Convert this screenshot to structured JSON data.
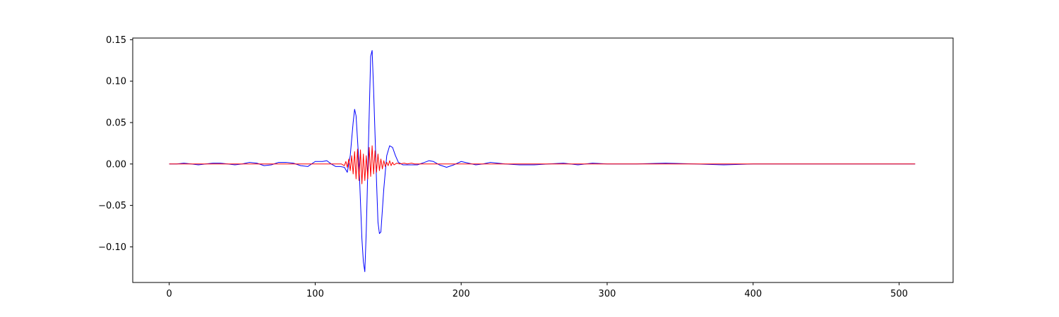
{
  "chart_data": {
    "type": "line",
    "title": "",
    "xlabel": "",
    "ylabel": "",
    "xlim": [
      -25,
      537
    ],
    "ylim": [
      -0.143,
      0.152
    ],
    "grid": false,
    "legend": "none",
    "x_ticks": [
      {
        "value": 0,
        "label": "0"
      },
      {
        "value": 100,
        "label": "100"
      },
      {
        "value": 200,
        "label": "200"
      },
      {
        "value": 300,
        "label": "300"
      },
      {
        "value": 400,
        "label": "400"
      },
      {
        "value": 500,
        "label": "500"
      }
    ],
    "y_ticks": [
      {
        "value": -0.1,
        "label": "−0.10"
      },
      {
        "value": -0.05,
        "label": "−0.05"
      },
      {
        "value": 0.0,
        "label": "0.00"
      },
      {
        "value": 0.05,
        "label": "0.05"
      },
      {
        "value": 0.1,
        "label": "0.10"
      },
      {
        "value": 0.15,
        "label": "0.15"
      }
    ],
    "series": [
      {
        "color": "#0000ff",
        "points": [
          [
            0,
            0.0
          ],
          [
            5,
            0.0
          ],
          [
            10,
            0.001
          ],
          [
            15,
            0.0
          ],
          [
            20,
            -0.001
          ],
          [
            25,
            0.0
          ],
          [
            30,
            0.001
          ],
          [
            35,
            0.001
          ],
          [
            40,
            0.0
          ],
          [
            45,
            -0.001
          ],
          [
            50,
            0.0
          ],
          [
            55,
            0.002
          ],
          [
            60,
            0.001
          ],
          [
            65,
            -0.002
          ],
          [
            70,
            -0.001
          ],
          [
            75,
            0.002
          ],
          [
            80,
            0.002
          ],
          [
            85,
            0.001
          ],
          [
            90,
            -0.002
          ],
          [
            95,
            -0.003
          ],
          [
            100,
            0.003
          ],
          [
            105,
            0.003
          ],
          [
            108,
            0.004
          ],
          [
            111,
            0.0
          ],
          [
            114,
            -0.003
          ],
          [
            117,
            -0.003
          ],
          [
            120,
            -0.004
          ],
          [
            122,
            -0.01
          ],
          [
            124,
            0.01
          ],
          [
            126,
            0.05
          ],
          [
            127,
            0.066
          ],
          [
            128,
            0.058
          ],
          [
            130,
            0.0
          ],
          [
            132,
            -0.09
          ],
          [
            133,
            -0.118
          ],
          [
            134,
            -0.13
          ],
          [
            135,
            -0.08
          ],
          [
            137,
            0.06
          ],
          [
            138,
            0.13
          ],
          [
            139,
            0.137
          ],
          [
            140,
            0.09
          ],
          [
            142,
            -0.02
          ],
          [
            143,
            -0.07
          ],
          [
            144,
            -0.084
          ],
          [
            145,
            -0.082
          ],
          [
            147,
            -0.03
          ],
          [
            149,
            0.01
          ],
          [
            151,
            0.022
          ],
          [
            153,
            0.02
          ],
          [
            155,
            0.01
          ],
          [
            157,
            0.002
          ],
          [
            160,
            -0.001
          ],
          [
            165,
            -0.001
          ],
          [
            170,
            -0.001
          ],
          [
            175,
            0.002
          ],
          [
            178,
            0.004
          ],
          [
            181,
            0.003
          ],
          [
            185,
            -0.001
          ],
          [
            190,
            -0.004
          ],
          [
            195,
            -0.001
          ],
          [
            200,
            0.003
          ],
          [
            205,
            0.001
          ],
          [
            210,
            -0.001
          ],
          [
            215,
            0.0
          ],
          [
            220,
            0.002
          ],
          [
            225,
            0.001
          ],
          [
            230,
            0.0
          ],
          [
            240,
            -0.001
          ],
          [
            250,
            -0.001
          ],
          [
            260,
            0.0
          ],
          [
            270,
            0.001
          ],
          [
            280,
            -0.001
          ],
          [
            290,
            0.001
          ],
          [
            300,
            0.0
          ],
          [
            320,
            0.0
          ],
          [
            340,
            0.001
          ],
          [
            360,
            0.0
          ],
          [
            380,
            -0.001
          ],
          [
            400,
            0.0
          ],
          [
            420,
            0.0
          ],
          [
            440,
            0.0
          ],
          [
            460,
            0.0
          ],
          [
            480,
            0.0
          ],
          [
            500,
            0.0
          ],
          [
            511,
            0.0
          ]
        ]
      },
      {
        "color": "#ff0000",
        "points": [
          [
            0,
            0.0
          ],
          [
            110,
            0.0
          ],
          [
            118,
            0.0
          ],
          [
            120,
            -0.002
          ],
          [
            121,
            0.003
          ],
          [
            122,
            -0.004
          ],
          [
            123,
            0.006
          ],
          [
            124,
            -0.008
          ],
          [
            125,
            0.01
          ],
          [
            126,
            -0.012
          ],
          [
            127,
            0.015
          ],
          [
            128,
            -0.018
          ],
          [
            129,
            0.018
          ],
          [
            130,
            -0.02
          ],
          [
            131,
            0.017
          ],
          [
            132,
            -0.024
          ],
          [
            133,
            0.012
          ],
          [
            134,
            -0.02
          ],
          [
            135,
            0.01
          ],
          [
            136,
            -0.018
          ],
          [
            137,
            0.02
          ],
          [
            138,
            -0.015
          ],
          [
            139,
            0.022
          ],
          [
            140,
            -0.012
          ],
          [
            141,
            0.016
          ],
          [
            142,
            -0.01
          ],
          [
            143,
            0.012
          ],
          [
            144,
            -0.008
          ],
          [
            145,
            0.006
          ],
          [
            146,
            -0.006
          ],
          [
            147,
            0.004
          ],
          [
            148,
            -0.003
          ],
          [
            149,
            0.002
          ],
          [
            150,
            -0.002
          ],
          [
            151,
            0.004
          ],
          [
            152,
            -0.002
          ],
          [
            153,
            0.002
          ],
          [
            154,
            -0.001
          ],
          [
            156,
            0.001
          ],
          [
            158,
            0.0
          ],
          [
            161,
            0.001
          ],
          [
            163,
            0.0
          ],
          [
            166,
            0.001
          ],
          [
            168,
            0.0
          ],
          [
            175,
            0.0
          ],
          [
            200,
            0.0
          ],
          [
            220,
            0.0
          ],
          [
            250,
            0.0
          ],
          [
            300,
            0.0
          ],
          [
            400,
            0.0
          ],
          [
            511,
            0.0
          ]
        ]
      }
    ]
  }
}
